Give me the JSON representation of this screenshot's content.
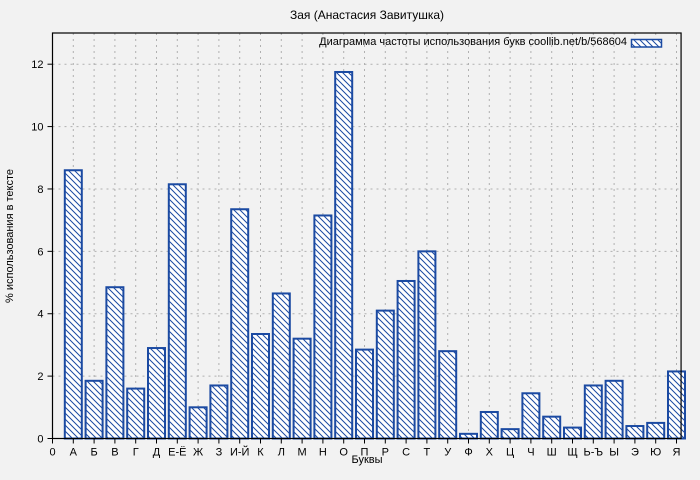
{
  "chart_data": {
    "type": "bar",
    "title": "Зая (Анастасия Завитушка)",
    "legend": "Диаграмма частоты использования букв coollib.net/b/568604",
    "legend_position": "top-right-inside",
    "xlabel": "Буквы",
    "ylabel": "% использования в тексте",
    "x_origin_label": "0",
    "categories": [
      "А",
      "Б",
      "В",
      "Г",
      "Д",
      "Е-Ё",
      "Ж",
      "З",
      "И-Й",
      "К",
      "Л",
      "М",
      "Н",
      "О",
      "П",
      "Р",
      "С",
      "Т",
      "У",
      "Ф",
      "Х",
      "Ц",
      "Ч",
      "Ш",
      "Щ",
      "Ь-Ъ",
      "Ы",
      "Э",
      "Ю",
      "Я"
    ],
    "values": [
      8.6,
      1.85,
      4.85,
      1.6,
      2.9,
      8.15,
      1.0,
      1.7,
      7.35,
      3.35,
      4.65,
      3.2,
      7.15,
      11.75,
      2.85,
      4.1,
      5.05,
      6.0,
      2.8,
      0.15,
      0.85,
      0.3,
      1.45,
      0.7,
      0.35,
      1.7,
      1.85,
      0.4,
      0.5,
      2.15
    ],
    "yticks": [
      0,
      2,
      4,
      6,
      8,
      10,
      12
    ],
    "ylim": [
      0,
      13
    ],
    "grid": true,
    "hatch": "diagonal-backslash",
    "colors": {
      "bar_border": "#1b4aa2",
      "bar_hatch": "#1b4aa2",
      "bar_fill": "#ffffff",
      "grid": "#b0b0b0",
      "frame": "#000000",
      "background": "#f2f2f2",
      "text": "#000000"
    }
  }
}
